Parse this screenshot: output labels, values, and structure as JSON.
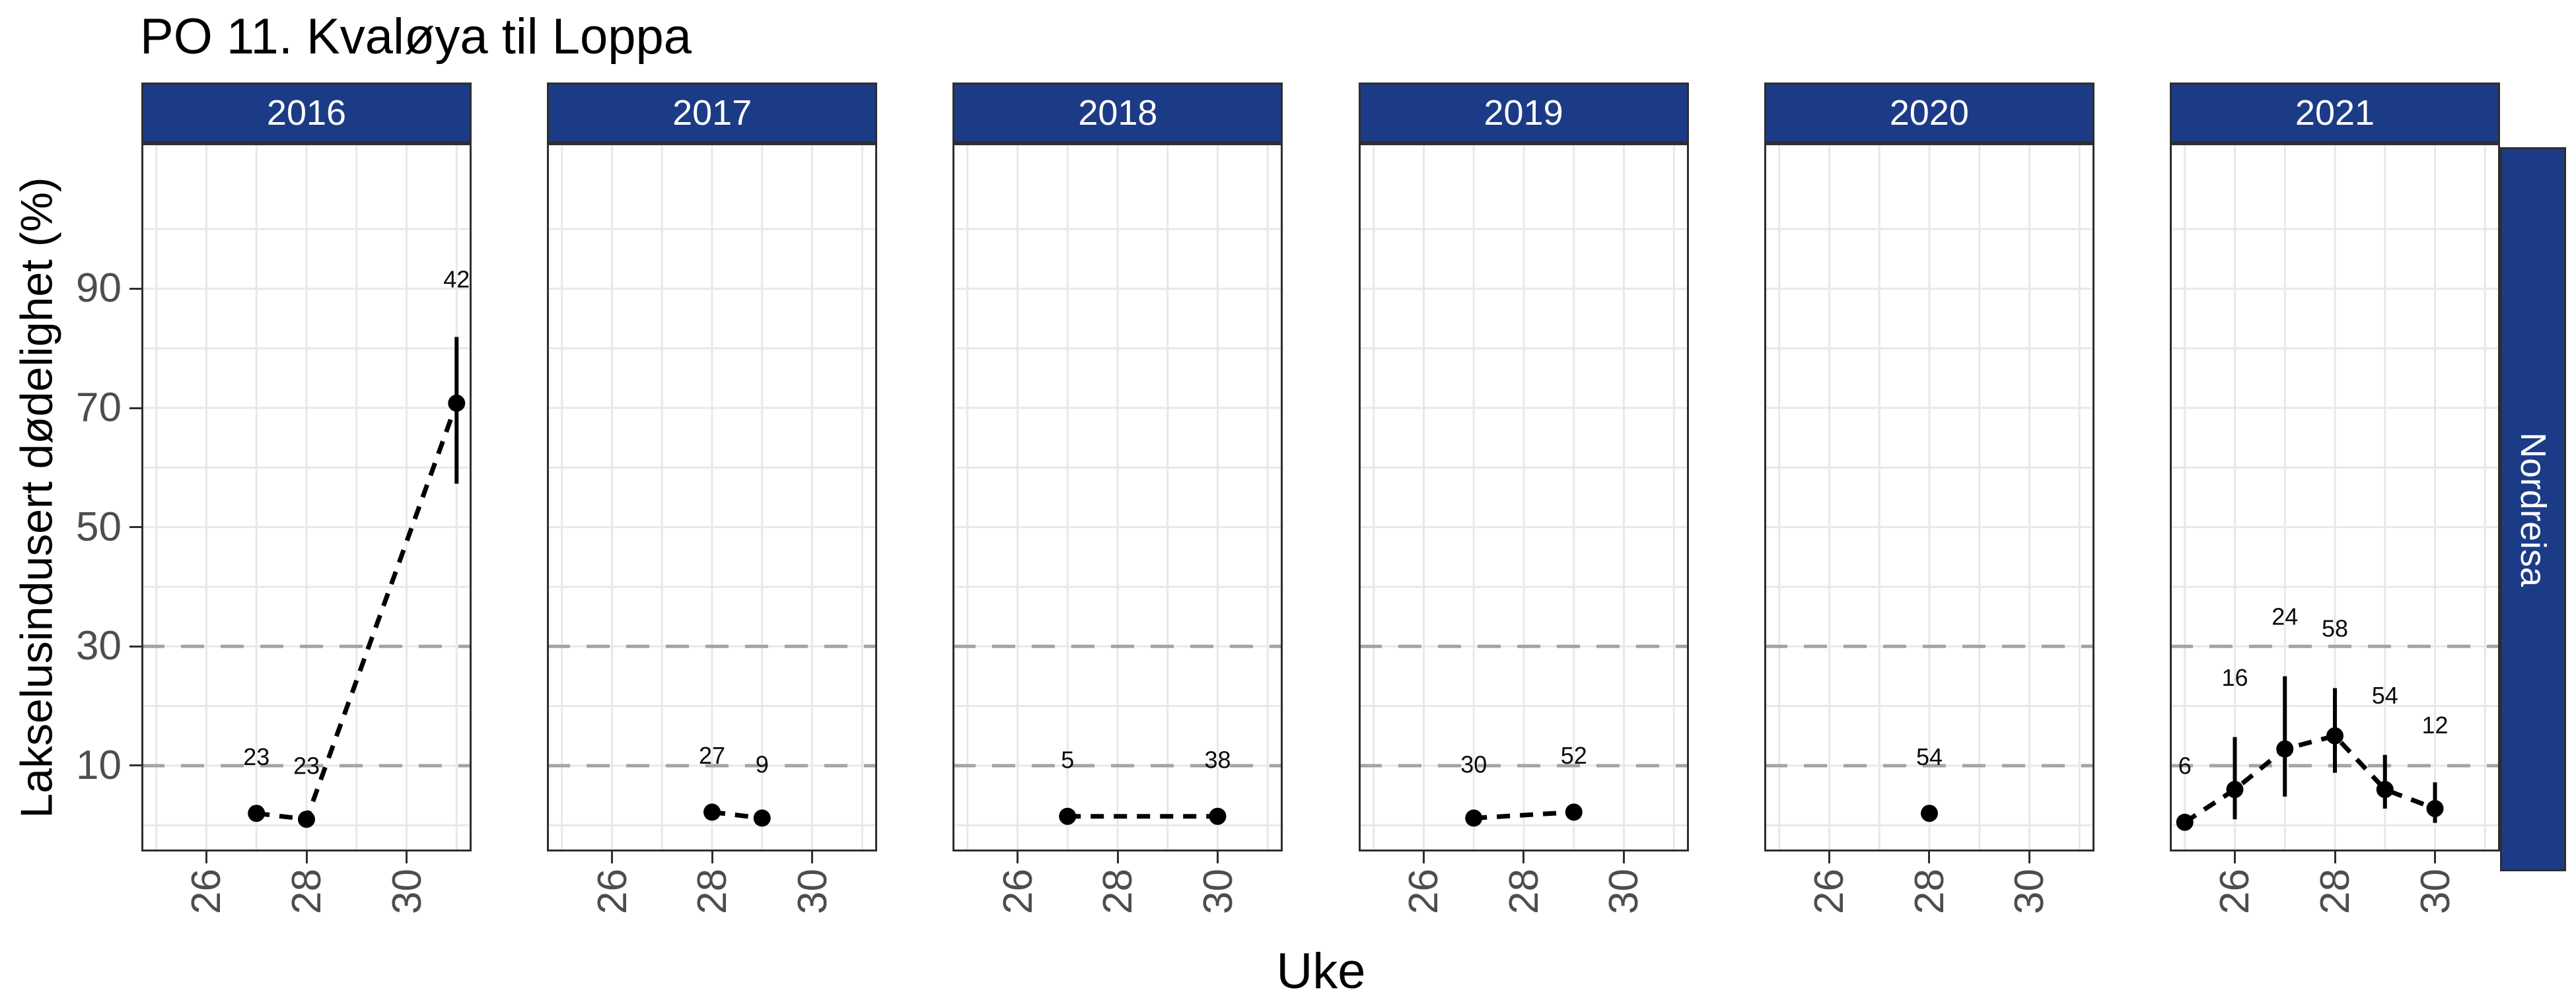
{
  "chart_data": {
    "type": "scatter",
    "title": "PO 11. Kvaløya til Loppa",
    "xlabel": "Uke",
    "ylabel": "Lakselusindusert dødelighet (%)",
    "facet_row_label": "Nordreisa",
    "x_ticks": [
      26,
      28,
      30
    ],
    "y_ticks": [
      10,
      30,
      50,
      70,
      90
    ],
    "y_minor_gridlines": [
      0,
      20,
      40,
      60,
      80,
      100
    ],
    "x_gridlines": [
      25,
      26,
      27,
      28,
      29,
      30,
      31
    ],
    "reference_lines_y": [
      10,
      30
    ],
    "x_domain": [
      24.7,
      31.3
    ],
    "y_domain": [
      -4.4,
      114.4
    ],
    "grid": true,
    "legend": "none",
    "facets": [
      {
        "year": "2016",
        "points": [
          {
            "week": 27,
            "value": 2.0,
            "ci_low": null,
            "ci_high": null,
            "label": "23",
            "label_y": 11.5
          },
          {
            "week": 28,
            "value": 1.0,
            "ci_low": null,
            "ci_high": null,
            "label": "23",
            "label_y": 10.0
          },
          {
            "week": 31,
            "value": 70.8,
            "ci_low": 57.3,
            "ci_high": 81.9,
            "label": "42",
            "label_y": 91.6
          }
        ]
      },
      {
        "year": "2017",
        "points": [
          {
            "week": 28,
            "value": 2.2,
            "ci_low": null,
            "ci_high": null,
            "label": "27",
            "label_y": 11.7
          },
          {
            "week": 29,
            "value": 1.2,
            "ci_low": null,
            "ci_high": null,
            "label": "9",
            "label_y": 10.2
          }
        ]
      },
      {
        "year": "2018",
        "points": [
          {
            "week": 27,
            "value": 1.5,
            "ci_low": null,
            "ci_high": null,
            "label": "5",
            "label_y": 11.0
          },
          {
            "week": 30,
            "value": 1.5,
            "ci_low": null,
            "ci_high": null,
            "label": "38",
            "label_y": 11.0
          }
        ]
      },
      {
        "year": "2019",
        "points": [
          {
            "week": 27,
            "value": 1.2,
            "ci_low": null,
            "ci_high": null,
            "label": "30",
            "label_y": 10.2
          },
          {
            "week": 29,
            "value": 2.2,
            "ci_low": null,
            "ci_high": null,
            "label": "52",
            "label_y": 11.7
          }
        ]
      },
      {
        "year": "2020",
        "points": [
          {
            "week": 28,
            "value": 2.0,
            "ci_low": null,
            "ci_high": null,
            "label": "54",
            "label_y": 11.5
          }
        ]
      },
      {
        "year": "2021",
        "points": [
          {
            "week": 25,
            "value": 0.5,
            "ci_low": null,
            "ci_high": null,
            "label": "6",
            "label_y": 10.0
          },
          {
            "week": 26,
            "value": 6.0,
            "ci_low": 1.0,
            "ci_high": 14.8,
            "label": "16",
            "label_y": 24.8
          },
          {
            "week": 27,
            "value": 12.8,
            "ci_low": 4.8,
            "ci_high": 25.0,
            "label": "24",
            "label_y": 35.0
          },
          {
            "week": 28,
            "value": 15.0,
            "ci_low": 8.8,
            "ci_high": 23.0,
            "label": "58",
            "label_y": 33.0
          },
          {
            "week": 29,
            "value": 6.0,
            "ci_low": 2.8,
            "ci_high": 11.8,
            "label": "54",
            "label_y": 21.8
          },
          {
            "week": 30,
            "value": 2.8,
            "ci_low": 0.4,
            "ci_high": 7.2,
            "label": "12",
            "label_y": 16.8
          }
        ]
      }
    ]
  },
  "colors": {
    "strip_bg": "#1c3b87",
    "strip_text": "#ffffff",
    "panel_border": "#2e2e2e",
    "gridline": "#e8e8e8",
    "reference_line": "#a3a3a3",
    "axis_text": "#4d4d4d",
    "data_black": "#000000",
    "title_text": "#000000"
  }
}
